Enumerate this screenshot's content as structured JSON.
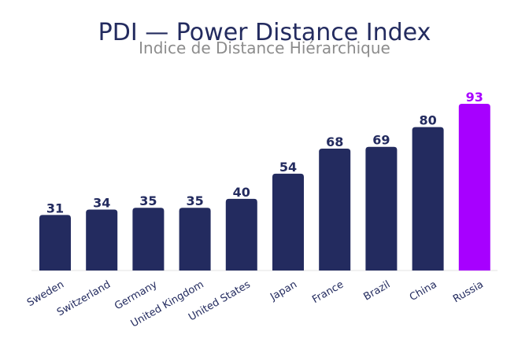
{
  "chart_data": {
    "type": "bar",
    "title": "PDI — Power Distance Index",
    "subtitle": "Indice de Distance Hiérarchique",
    "categories": [
      "Sweden",
      "Switzerland",
      "Germany",
      "United Kingdom",
      "United States",
      "Japan",
      "France",
      "Brazil",
      "China",
      "Russia"
    ],
    "values": [
      31,
      34,
      35,
      35,
      40,
      54,
      68,
      69,
      80,
      93
    ],
    "ylim": [
      0,
      93
    ],
    "grid": false,
    "legend": "none",
    "highlight_category": "Russia",
    "colors": {
      "bar": "#232B5F",
      "highlight": "#A700FF",
      "title": "#232B5F",
      "subtitle": "#8C8C8C",
      "axis": "#E3E3E3"
    }
  }
}
